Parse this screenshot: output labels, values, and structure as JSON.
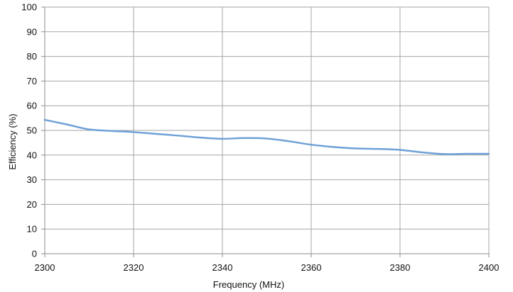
{
  "chart_data": {
    "type": "line",
    "title": "",
    "xlabel": "Frequency (MHz)",
    "ylabel": "Efficiency (%)",
    "xlim": [
      2300,
      2400
    ],
    "ylim": [
      0,
      100
    ],
    "x_ticks": [
      2300,
      2320,
      2340,
      2360,
      2380,
      2400
    ],
    "y_ticks": [
      0,
      10,
      20,
      30,
      40,
      50,
      60,
      70,
      80,
      90,
      100
    ],
    "grid": true,
    "legend": "none",
    "colors": {
      "series": "#6FA0D8",
      "grid": "#A6A6A6",
      "axis": "#8C8C8C"
    },
    "series": [
      {
        "x": [
          2300,
          2305,
          2310,
          2315,
          2320,
          2325,
          2330,
          2335,
          2340,
          2345,
          2350,
          2355,
          2360,
          2365,
          2370,
          2375,
          2380,
          2385,
          2390,
          2395,
          2400
        ],
        "y": [
          54.3,
          52.4,
          50.4,
          49.8,
          49.3,
          48.6,
          47.9,
          47.1,
          46.6,
          46.9,
          46.7,
          45.6,
          44.2,
          43.3,
          42.7,
          42.5,
          42.1,
          41.1,
          40.4,
          40.5,
          40.5
        ]
      }
    ]
  }
}
